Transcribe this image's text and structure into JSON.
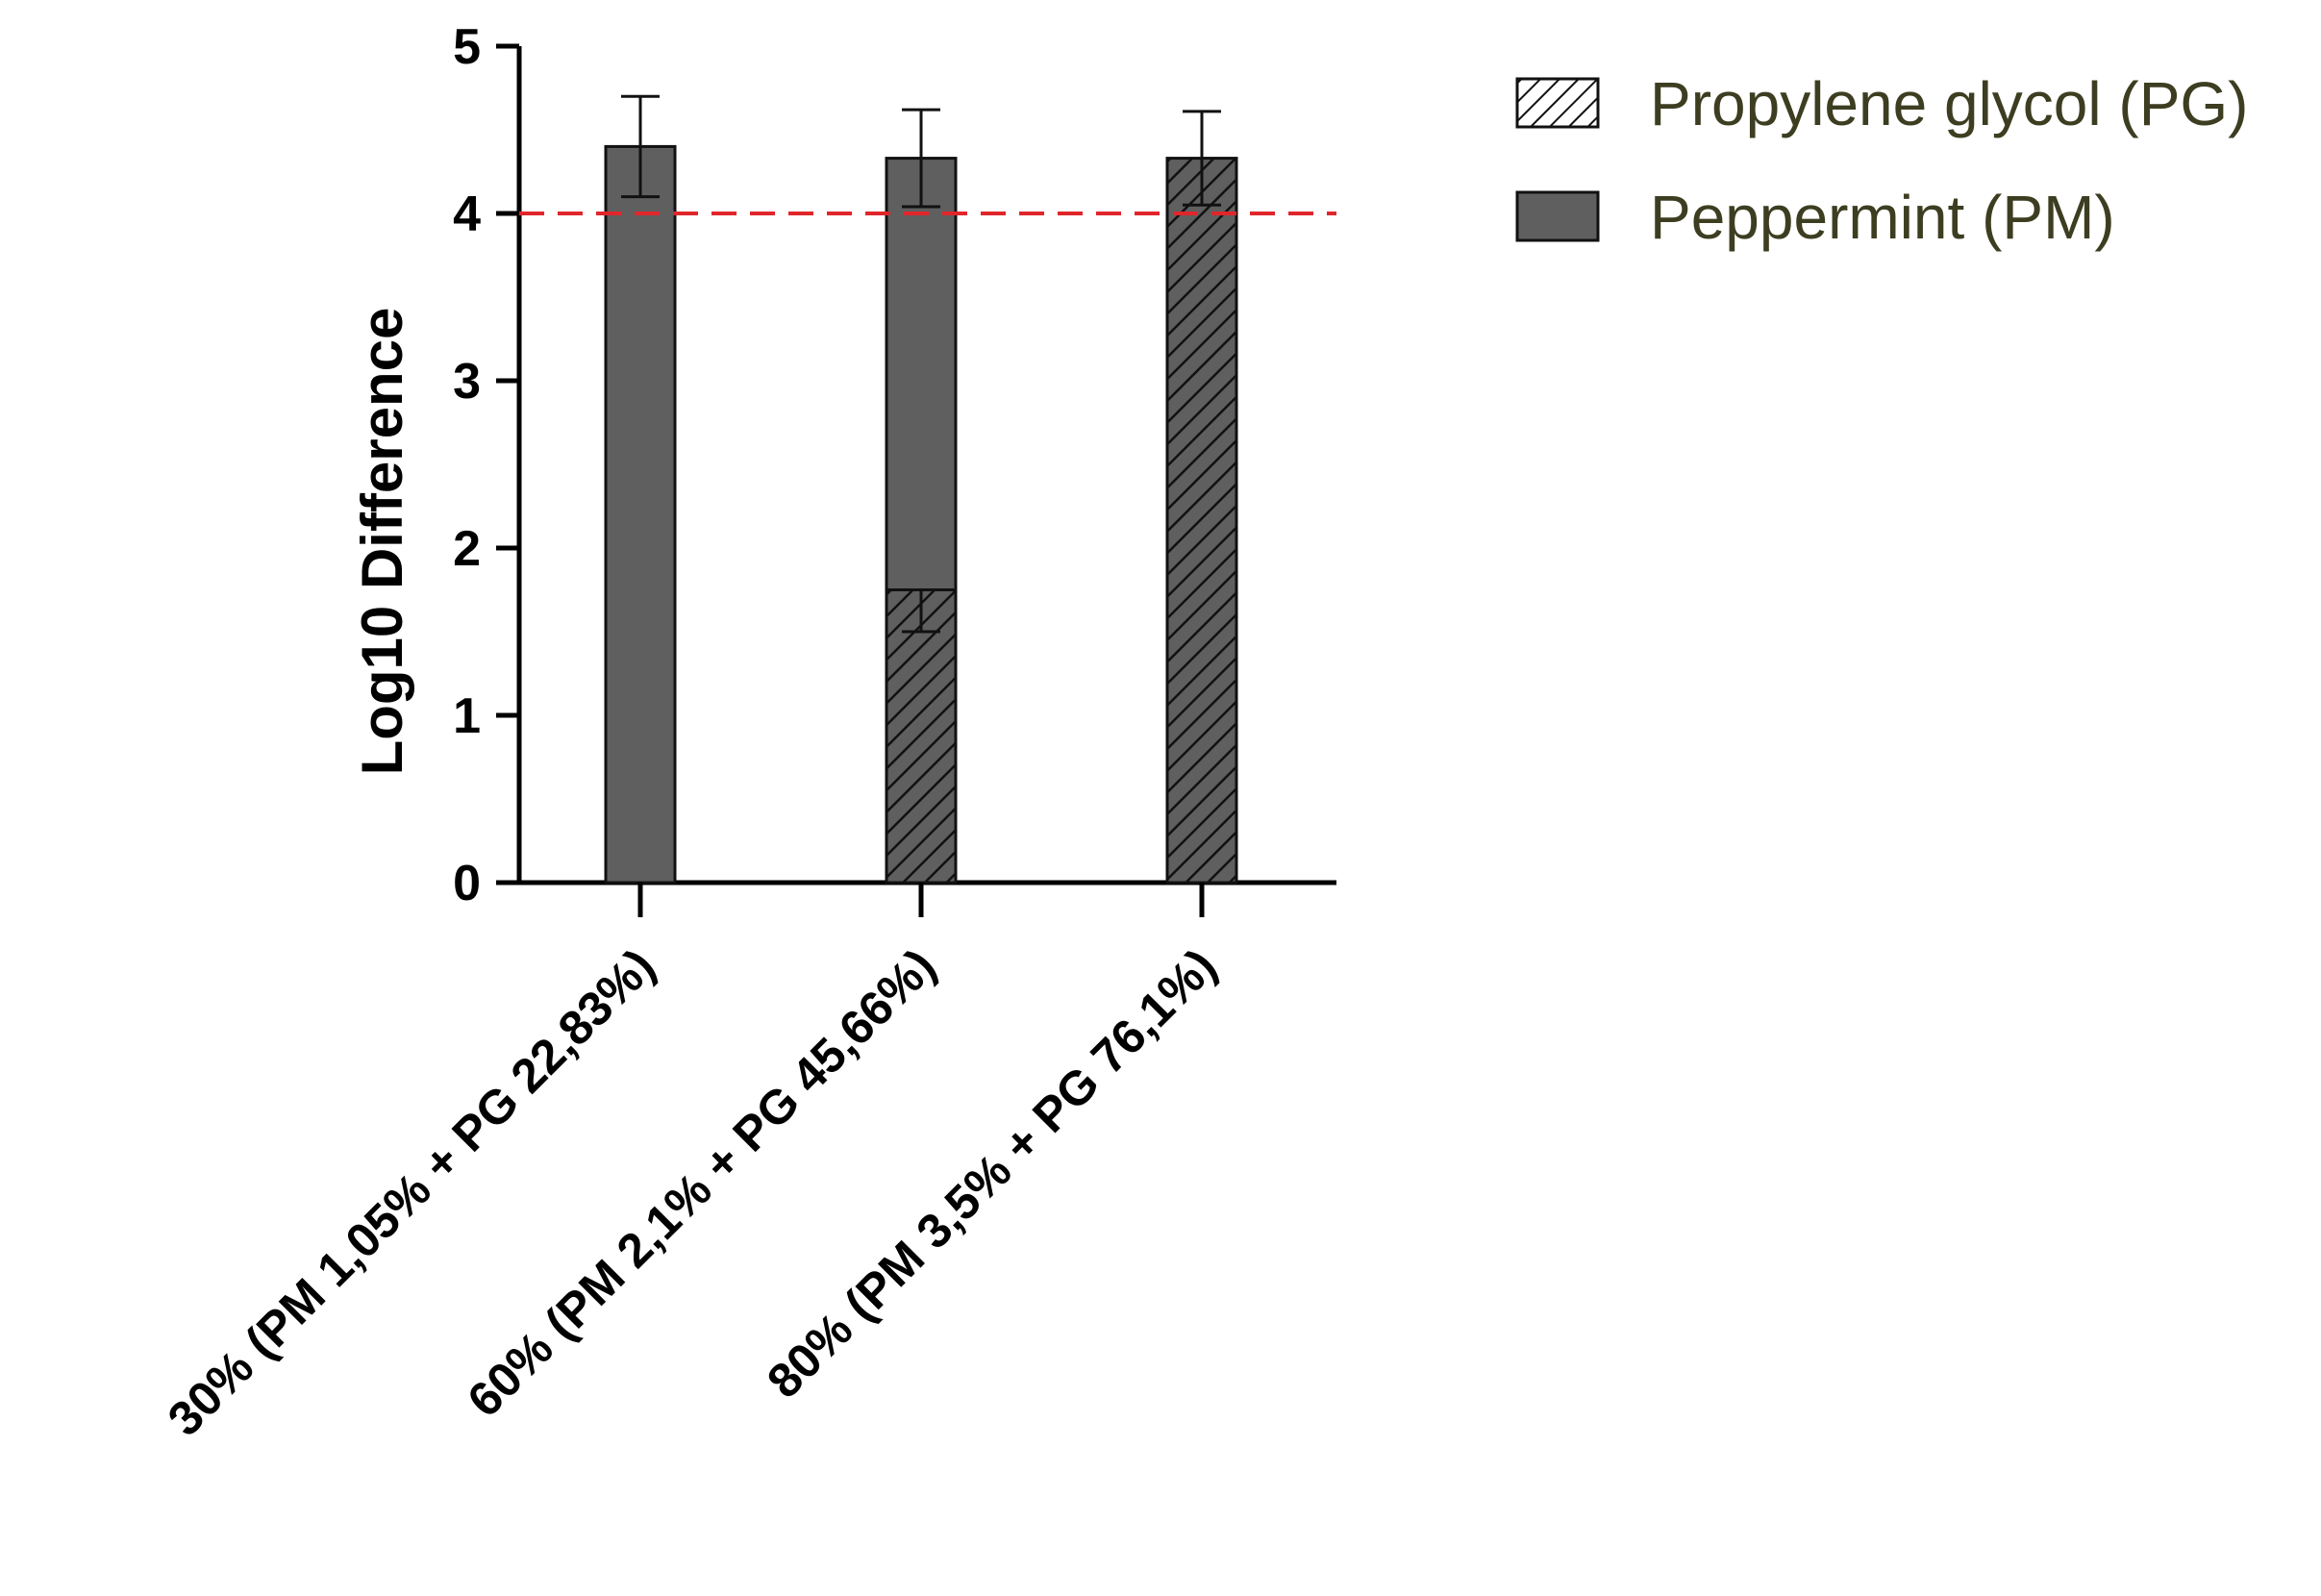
{
  "chart_data": {
    "type": "bar",
    "stacked": true,
    "ylabel": "Log10 Difference",
    "xlabel": "",
    "ylim": [
      0,
      5
    ],
    "yticks": [
      0,
      1,
      2,
      3,
      4,
      5
    ],
    "categories": [
      "30% (PM 1,05% + PG 22,83%)",
      "60% (PM 2,1% + PG 45,66%)",
      "80% (PM 3,5% + PG 76,1%)"
    ],
    "series": [
      {
        "name": "Propylene glycol (PG)",
        "pattern": "hatched",
        "values": [
          0,
          1.75,
          4.33
        ],
        "error": [
          null,
          0.25,
          0.28
        ]
      },
      {
        "name": "Peppermint (PM)",
        "pattern": "solid",
        "values": [
          4.4,
          2.58,
          0
        ],
        "error": [
          0.3,
          0.29,
          null
        ]
      }
    ],
    "reference_line": {
      "y": 4,
      "style": "dashed",
      "color": "#e0262b"
    },
    "legend_position": "top-right",
    "colors": {
      "bar_fill": "#5f5f5f",
      "bar_stroke": "#111111",
      "legend_text": "#3d3d21"
    },
    "grid": false
  }
}
